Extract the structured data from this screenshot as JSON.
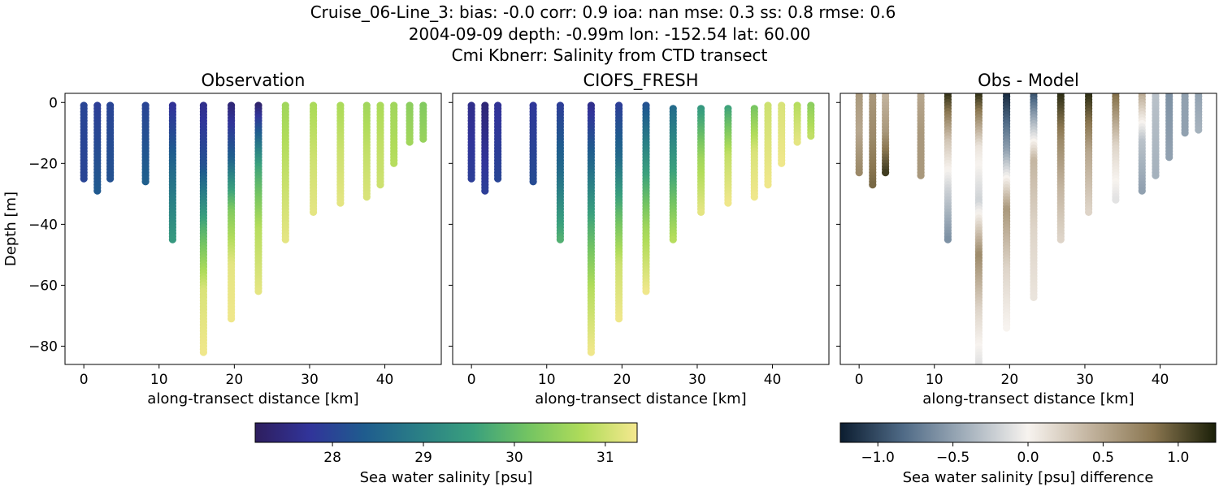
{
  "title_lines": [
    "Cruise_06-Line_3: bias: -0.0  corr: 0.9  ioa: nan  mse: 0.3  ss: 0.8  rmse: 0.6",
    "2004-09-09 depth: -0.99m lon: -152.54 lat: 60.00",
    "Cmi Kbnerr: Salinity from CTD transect"
  ],
  "colors": {
    "salinity_colormap": [
      "#2e1e5e",
      "#31349a",
      "#1f5c8e",
      "#2a7f86",
      "#3aa07d",
      "#73c462",
      "#b0dc5a",
      "#f5e88f"
    ],
    "difference_colormap": [
      "#0c1d30",
      "#4f6a86",
      "#a2afbb",
      "#f7f3ef",
      "#c2b39e",
      "#8a7650",
      "#1a1f08"
    ]
  },
  "chart_data": [
    {
      "type": "scatter",
      "title": "Observation",
      "xlabel": "along-transect distance [km]",
      "ylabel": "Depth [m]",
      "xlim": [
        -2.5,
        47.5
      ],
      "ylim": [
        -86,
        3
      ],
      "xticks": [
        0,
        10,
        20,
        30,
        40
      ],
      "yticks": [
        0,
        -20,
        -40,
        -60,
        -80
      ],
      "x_tick_labels": [
        "0",
        "10",
        "20",
        "30",
        "40"
      ],
      "y_tick_labels": [
        "0",
        "−20",
        "−40",
        "−60",
        "−80"
      ],
      "colorbar": "salinity",
      "casts": [
        {
          "x": 0.0,
          "top": -1,
          "bottom": -25,
          "values": [
            28.0,
            28.0
          ]
        },
        {
          "x": 1.8,
          "top": -1,
          "bottom": -29,
          "values": [
            27.9,
            28.3
          ]
        },
        {
          "x": 3.5,
          "top": -1,
          "bottom": -25,
          "values": [
            28.0,
            28.2
          ]
        },
        {
          "x": 8.2,
          "top": -1,
          "bottom": -26,
          "values": [
            28.0,
            28.4
          ]
        },
        {
          "x": 11.8,
          "top": -1,
          "bottom": -45,
          "values": [
            27.7,
            28.6,
            29.4
          ]
        },
        {
          "x": 15.9,
          "top": -1,
          "bottom": -82,
          "values": [
            27.6,
            28.2,
            29.8,
            31.1,
            31.3
          ]
        },
        {
          "x": 19.6,
          "top": -1,
          "bottom": -71,
          "values": [
            27.4,
            28.4,
            30.3,
            31.2,
            31.3
          ]
        },
        {
          "x": 23.2,
          "top": -1,
          "bottom": -62,
          "values": [
            27.3,
            29.6,
            30.8,
            31.2
          ]
        },
        {
          "x": 26.8,
          "top": -1,
          "bottom": -45,
          "values": [
            30.6,
            30.9,
            31.2
          ]
        },
        {
          "x": 30.5,
          "top": -1,
          "bottom": -36,
          "values": [
            30.7,
            31.0,
            31.2
          ]
        },
        {
          "x": 34.1,
          "top": -1,
          "bottom": -33,
          "values": [
            30.7,
            31.0,
            31.2
          ]
        },
        {
          "x": 37.6,
          "top": -1,
          "bottom": -31,
          "values": [
            30.6,
            30.9,
            31.1
          ]
        },
        {
          "x": 39.4,
          "top": -1,
          "bottom": -27,
          "values": [
            30.7,
            30.9,
            31.0
          ]
        },
        {
          "x": 41.2,
          "top": -1,
          "bottom": -20,
          "values": [
            30.6,
            30.8
          ]
        },
        {
          "x": 43.3,
          "top": -1,
          "bottom": -13,
          "values": [
            30.4,
            30.6
          ]
        },
        {
          "x": 45.1,
          "top": -1,
          "bottom": -12,
          "values": [
            30.3,
            30.5
          ]
        }
      ]
    },
    {
      "type": "scatter",
      "title": "CIOFS_FRESH",
      "xlabel": "along-transect distance [km]",
      "ylabel": "",
      "xlim": [
        -2.5,
        47.5
      ],
      "ylim": [
        -86,
        3
      ],
      "xticks": [
        0,
        10,
        20,
        30,
        40
      ],
      "yticks": [
        0,
        -20,
        -40,
        -60,
        -80
      ],
      "x_tick_labels": [
        "0",
        "10",
        "20",
        "30",
        "40"
      ],
      "y_tick_labels": [],
      "colorbar": "salinity",
      "casts": [
        {
          "x": 0.0,
          "top": -1,
          "bottom": -25,
          "values": [
            27.6,
            27.9
          ]
        },
        {
          "x": 1.8,
          "top": -1,
          "bottom": -29,
          "values": [
            27.4,
            27.9
          ]
        },
        {
          "x": 3.5,
          "top": -1,
          "bottom": -25,
          "values": [
            27.7,
            28.0
          ]
        },
        {
          "x": 8.2,
          "top": -1,
          "bottom": -26,
          "values": [
            27.8,
            28.1
          ]
        },
        {
          "x": 11.8,
          "top": -1,
          "bottom": -45,
          "values": [
            27.9,
            28.6,
            29.8
          ]
        },
        {
          "x": 15.9,
          "top": -1,
          "bottom": -82,
          "values": [
            27.6,
            28.6,
            29.8,
            30.8,
            31.3
          ]
        },
        {
          "x": 19.6,
          "top": -1,
          "bottom": -71,
          "values": [
            27.9,
            28.6,
            29.9,
            31.0,
            31.3
          ]
        },
        {
          "x": 23.2,
          "top": -1,
          "bottom": -62,
          "values": [
            28.2,
            29.4,
            30.6,
            31.3
          ]
        },
        {
          "x": 26.8,
          "top": -2,
          "bottom": -45,
          "values": [
            28.6,
            29.6,
            30.8
          ]
        },
        {
          "x": 30.5,
          "top": -2,
          "bottom": -36,
          "values": [
            29.4,
            30.6,
            31.2
          ]
        },
        {
          "x": 34.1,
          "top": -2,
          "bottom": -33,
          "values": [
            29.6,
            30.9,
            31.3
          ]
        },
        {
          "x": 37.6,
          "top": -2,
          "bottom": -31,
          "values": [
            30.2,
            31.1,
            31.3
          ]
        },
        {
          "x": 39.4,
          "top": -1,
          "bottom": -27,
          "values": [
            31.0,
            31.3
          ]
        },
        {
          "x": 41.2,
          "top": -1,
          "bottom": -20,
          "values": [
            31.1,
            31.3
          ]
        },
        {
          "x": 43.3,
          "top": -1,
          "bottom": -13,
          "values": [
            30.8,
            31.2
          ]
        },
        {
          "x": 45.1,
          "top": -1,
          "bottom": -11,
          "values": [
            30.4,
            30.9
          ]
        }
      ]
    },
    {
      "type": "scatter",
      "title": "Obs - Model",
      "xlabel": "along-transect distance [km]",
      "ylabel": "",
      "xlim": [
        -2.5,
        47.5
      ],
      "ylim": [
        -86,
        3
      ],
      "xticks": [
        0,
        10,
        20,
        30,
        40
      ],
      "yticks": [
        0,
        -20,
        -40,
        -60,
        -80
      ],
      "x_tick_labels": [
        "0",
        "10",
        "20",
        "30",
        "40"
      ],
      "y_tick_labels": [],
      "colorbar": "difference",
      "casts": [
        {
          "x": 0.0,
          "top": 3,
          "bottom": -23,
          "values": [
            0.6,
            0.5,
            0.7
          ]
        },
        {
          "x": 1.8,
          "top": 3,
          "bottom": -27,
          "values": [
            0.6,
            0.7,
            0.9
          ]
        },
        {
          "x": 3.5,
          "top": 3,
          "bottom": -23,
          "values": [
            0.4,
            0.6,
            1.1
          ]
        },
        {
          "x": 8.2,
          "top": 3,
          "bottom": -24,
          "values": [
            0.5,
            0.6,
            0.6
          ]
        },
        {
          "x": 11.8,
          "top": 3,
          "bottom": -45,
          "values": [
            1.2,
            0.3,
            -0.2,
            -0.6
          ]
        },
        {
          "x": 15.9,
          "top": 3,
          "bottom": -86,
          "values": [
            1.2,
            0.1,
            -0.2,
            0.7,
            0.2,
            -0.1
          ]
        },
        {
          "x": 19.6,
          "top": 3,
          "bottom": -74,
          "values": [
            -1.2,
            -0.5,
            0.6,
            0.2,
            0.0
          ]
        },
        {
          "x": 23.2,
          "top": 3,
          "bottom": -64,
          "values": [
            -1.0,
            0.4,
            0.2,
            0.1
          ]
        },
        {
          "x": 26.8,
          "top": 3,
          "bottom": -45,
          "values": [
            1.2,
            0.7,
            0.4,
            0.2
          ]
        },
        {
          "x": 30.5,
          "top": 3,
          "bottom": -36,
          "values": [
            1.2,
            0.5,
            0.2
          ]
        },
        {
          "x": 34.1,
          "top": 3,
          "bottom": -32,
          "values": [
            0.9,
            0.2,
            -0.1
          ]
        },
        {
          "x": 37.6,
          "top": 3,
          "bottom": -29,
          "values": [
            0.5,
            -0.3,
            -0.5
          ]
        },
        {
          "x": 39.4,
          "top": 3,
          "bottom": -24,
          "values": [
            -0.3,
            -0.4
          ]
        },
        {
          "x": 41.2,
          "top": 3,
          "bottom": -18,
          "values": [
            -0.6,
            -0.5
          ]
        },
        {
          "x": 43.3,
          "top": 3,
          "bottom": -10,
          "values": [
            -0.5,
            -0.5
          ]
        },
        {
          "x": 45.1,
          "top": 3,
          "bottom": -9,
          "values": [
            -0.5,
            -0.4
          ]
        }
      ]
    }
  ],
  "colorbars": {
    "salinity": {
      "label": "Sea water salinity [psu]",
      "range": [
        27.15,
        31.35
      ],
      "ticks": [
        28,
        29,
        30,
        31
      ],
      "tick_labels": [
        "28",
        "29",
        "30",
        "31"
      ]
    },
    "difference": {
      "label": "Sea water salinity [psu] difference",
      "range": [
        -1.25,
        1.25
      ],
      "ticks": [
        -1.0,
        -0.5,
        0.0,
        0.5,
        1.0
      ],
      "tick_labels": [
        "−1.0",
        "−0.5",
        "0.0",
        "0.5",
        "1.0"
      ]
    }
  }
}
